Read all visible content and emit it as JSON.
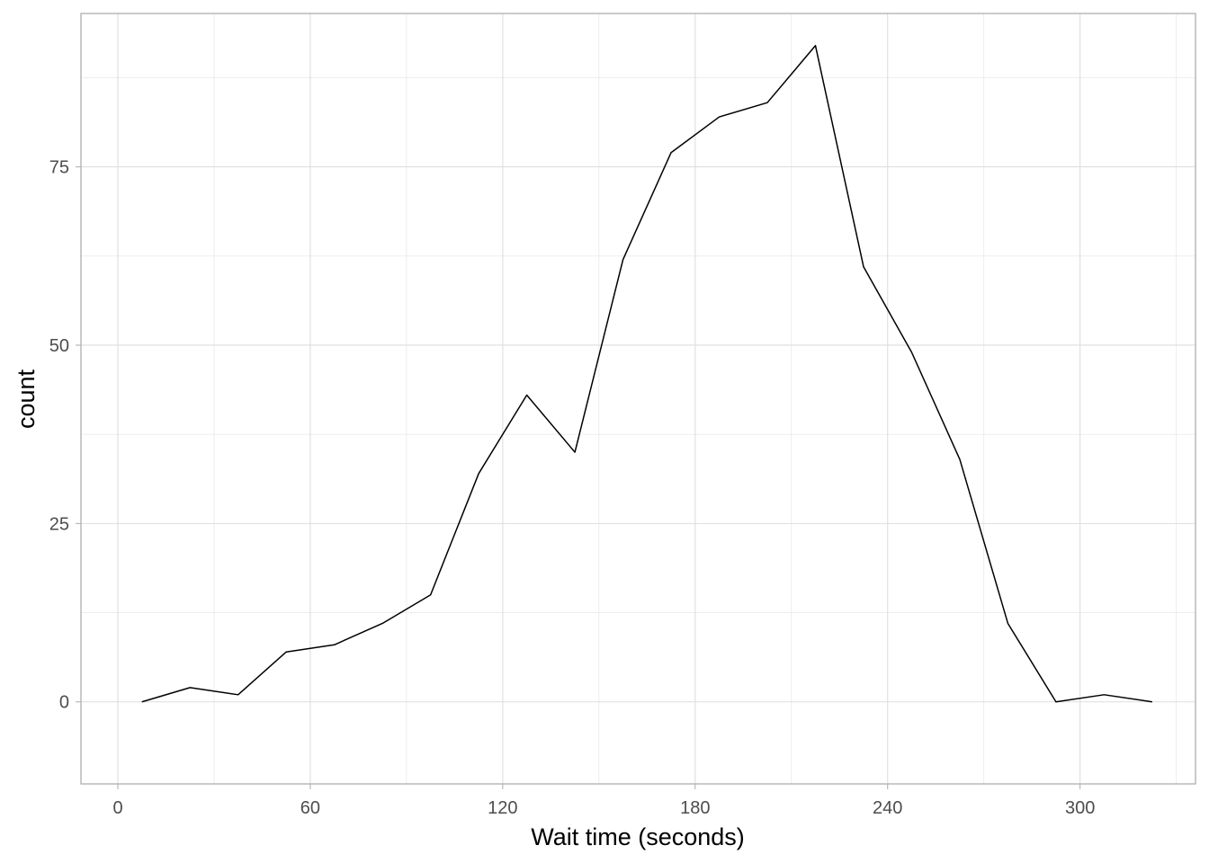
{
  "chart_data": {
    "type": "line",
    "title": "",
    "xlabel": "Wait time (seconds)",
    "ylabel": "count",
    "xlim": [
      -11.5,
      336
    ],
    "ylim": [
      -11.5,
      96.5
    ],
    "x_ticks": [
      0,
      60,
      120,
      180,
      240,
      300
    ],
    "x_minor_ticks": [
      30,
      90,
      150,
      210,
      270,
      330
    ],
    "y_ticks": [
      0,
      25,
      50,
      75
    ],
    "y_minor_ticks": [
      12.5,
      37.5,
      62.5,
      87.5
    ],
    "x_tick_labels": [
      "0",
      "60",
      "120",
      "180",
      "240",
      "300"
    ],
    "y_tick_labels": [
      "0",
      "25",
      "50",
      "75"
    ],
    "grid": true,
    "legend": "none",
    "series": [
      {
        "color": "#000000",
        "x": [
          7.5,
          22.5,
          37.5,
          52.5,
          67.5,
          82.5,
          97.5,
          112.5,
          127.5,
          142.5,
          157.5,
          172.5,
          187.5,
          202.5,
          217.5,
          232.5,
          247.5,
          262.5,
          277.5,
          292.5,
          307.5,
          322.5
        ],
        "values": [
          0,
          2,
          1,
          7,
          8,
          11,
          15,
          32,
          43,
          35,
          62,
          77,
          82,
          84,
          92,
          61,
          49,
          34,
          11,
          0,
          1,
          0
        ]
      }
    ]
  }
}
